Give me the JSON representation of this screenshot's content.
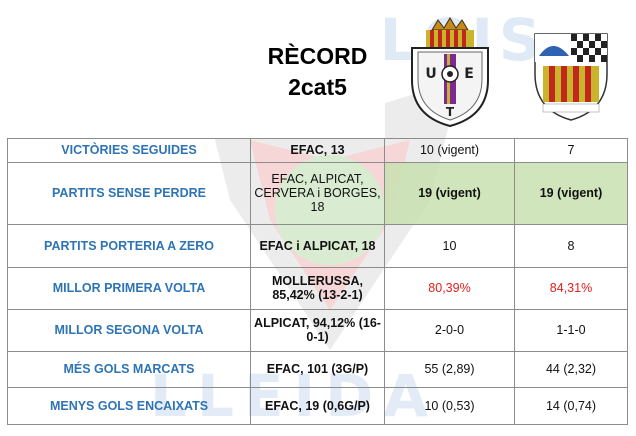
{
  "watermark": {
    "top": "FUTBOLCIS",
    "bottom": "LLEIDA"
  },
  "header": {
    "title_line1": "RÈCORD",
    "title_line2": "2cat5",
    "crest_left_letters": [
      "U",
      "E",
      "T"
    ]
  },
  "rows": [
    {
      "label": "VICTÒRIES SEGUIDES",
      "record": "EFAC, 13",
      "team_a": "10 (vigent)",
      "team_b": "7"
    },
    {
      "label": "PARTITS SENSE PERDRE",
      "record": "EFAC, ALPICAT, CERVERA i BORGES, 18",
      "team_a": "19 (vigent)",
      "team_b": "19 (vigent)"
    },
    {
      "label": "PARTITS PORTERIA A ZERO",
      "record": "EFAC i ALPICAT, 18",
      "team_a": "10",
      "team_b": "8"
    },
    {
      "label": "MILLOR PRIMERA VOLTA",
      "record": "MOLLERUSSA, 85,42% (13-2-1)",
      "team_a": "80,39%",
      "team_b": "84,31%"
    },
    {
      "label": "MILLOR SEGONA VOLTA",
      "record": "ALPICAT, 94,12% (16-0-1)",
      "team_a": "2-0-0",
      "team_b": "1-1-0"
    },
    {
      "label": "MÉS GOLS MARCATS",
      "record": "EFAC, 101 (3G/P)",
      "team_a": "55 (2,89)",
      "team_b": "44 (2,32)"
    },
    {
      "label": "MENYS GOLS ENCAIXATS",
      "record": "EFAC, 19 (0,6G/P)",
      "team_a": "10 (0,53)",
      "team_b": "14 (0,74)"
    }
  ],
  "colors": {
    "label_blue": "#2e74b5",
    "highlight_green": "#c8e1b0",
    "red_value": "#e3201b"
  }
}
